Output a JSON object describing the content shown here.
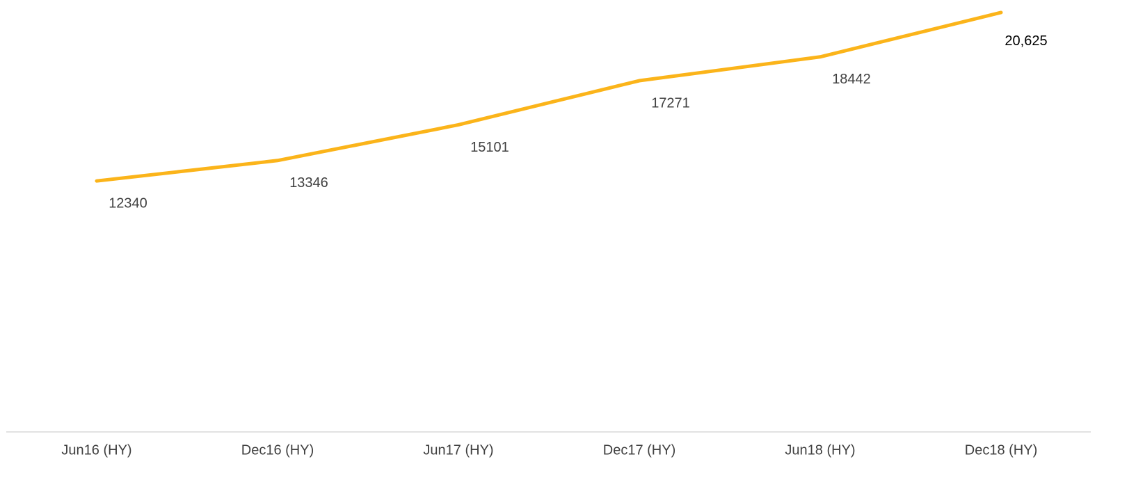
{
  "chart_data": {
    "type": "line",
    "categories": [
      "Jun16 (HY)",
      "Dec16 (HY)",
      "Jun17 (HY)",
      "Dec17 (HY)",
      "Jun18 (HY)",
      "Dec18 (HY)"
    ],
    "values": [
      12340,
      13346,
      15101,
      17271,
      18442,
      20625
    ],
    "value_labels": [
      "12340",
      "13346",
      "15101",
      "17271",
      "18442",
      "20,625"
    ],
    "color": "#fbb41a",
    "ylim": [
      0,
      21000
    ]
  }
}
